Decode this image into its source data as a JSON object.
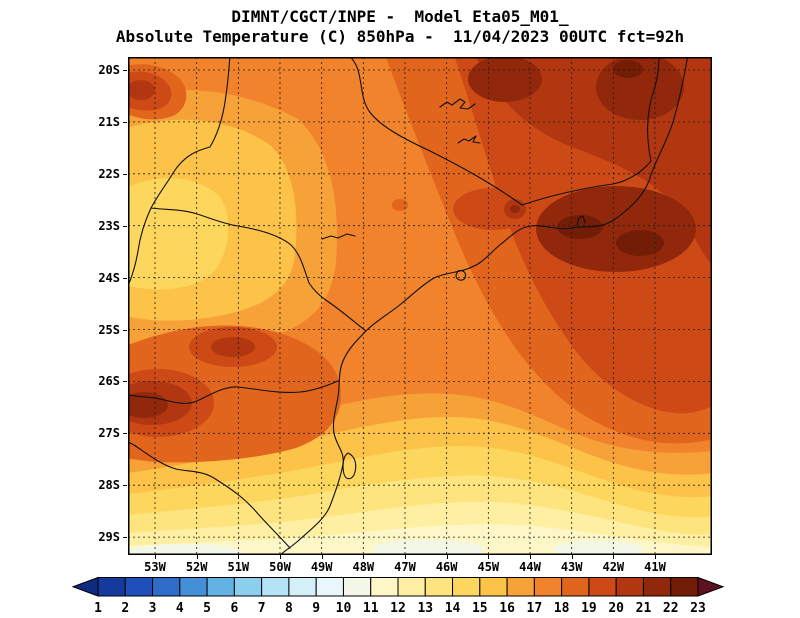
{
  "title": {
    "line1": "DIMNT/CGCT/INPE -  Model Eta05_M01_",
    "line2": "Absolute Temperature (C) 850hPa -  11/04/2023 00UTC fct=92h"
  },
  "chart_data": {
    "type": "filled-contour-map",
    "institution": "DIMNT/CGCT/INPE",
    "model": "Eta05_M01_",
    "variable": "Absolute Temperature (C) 850hPa",
    "valid_time": "11/04/2023 00UTC",
    "forecast_hour": "fct=92h",
    "lat_ticks": [
      "20S",
      "21S",
      "22S",
      "23S",
      "24S",
      "25S",
      "26S",
      "27S",
      "28S",
      "29S"
    ],
    "lon_ticks": [
      "53W",
      "52W",
      "51W",
      "50W",
      "49W",
      "48W",
      "47W",
      "46W",
      "45W",
      "44W",
      "43W",
      "42W",
      "41W"
    ],
    "grid": "dashed lat/lon graticule every 1 degree",
    "colorbar": {
      "orientation": "horizontal",
      "units": "C",
      "tick_labels": [
        "1",
        "2",
        "3",
        "4",
        "5",
        "6",
        "7",
        "8",
        "9",
        "10",
        "11",
        "12",
        "13",
        "14",
        "15",
        "16",
        "17",
        "18",
        "19",
        "20",
        "21",
        "22",
        "23"
      ],
      "colors_note": "index 0 = below-range left arrow, 1..22 = bands n to n+1 C, 23 = above-range right arrow",
      "colors": [
        "#0f2a7e",
        "#16399e",
        "#1e4fba",
        "#2d6cc9",
        "#4390d8",
        "#62b2e4",
        "#8cceed",
        "#b3e3f4",
        "#d4eff8",
        "#e9f7fb",
        "#f2f7e8",
        "#fdf7c8",
        "#ffefa2",
        "#fee47e",
        "#fdd75d",
        "#fcc348",
        "#f7a238",
        "#f0832b",
        "#e2651e",
        "#cd4a16",
        "#b23710",
        "#92280b",
        "#731d07",
        "#5c1220"
      ]
    },
    "field_regions": [
      {
        "where": "northeast quadrant (47W-41W, 20S-24S)",
        "temp_c": [
          19,
          22
        ]
      },
      {
        "where": "hot cores along top edge near 45W-42W, 20S-21S",
        "temp_c": [
          21,
          23
        ]
      },
      {
        "where": "large hot core 44W-41W, 22.5S-24S (Rio de Janeiro / Serra)",
        "temp_c": [
          21,
          23
        ]
      },
      {
        "where": "small hot spot near Sao Paulo city (46.5W, 23.5S)",
        "temp_c": [
          20,
          21
        ]
      },
      {
        "where": "west-central plateau (53W-49.5W, 21S-25S)",
        "temp_c": [
          14,
          16
        ]
      },
      {
        "where": "central band across Sao Paulo state",
        "temp_c": [
          17,
          19
        ]
      },
      {
        "where": "northwest corner spot (53W, 20.5S)",
        "temp_c": [
          19,
          21
        ]
      },
      {
        "where": "southwest hot blobs near 51.5W 25.5S and 53.5W 26.5S",
        "temp_c": [
          19,
          22
        ]
      },
      {
        "where": "southern band 27S-28.5S",
        "temp_c": [
          12,
          15
        ]
      },
      {
        "where": "far south along 29S and coastal patches",
        "temp_c": [
          10,
          12
        ]
      }
    ]
  }
}
